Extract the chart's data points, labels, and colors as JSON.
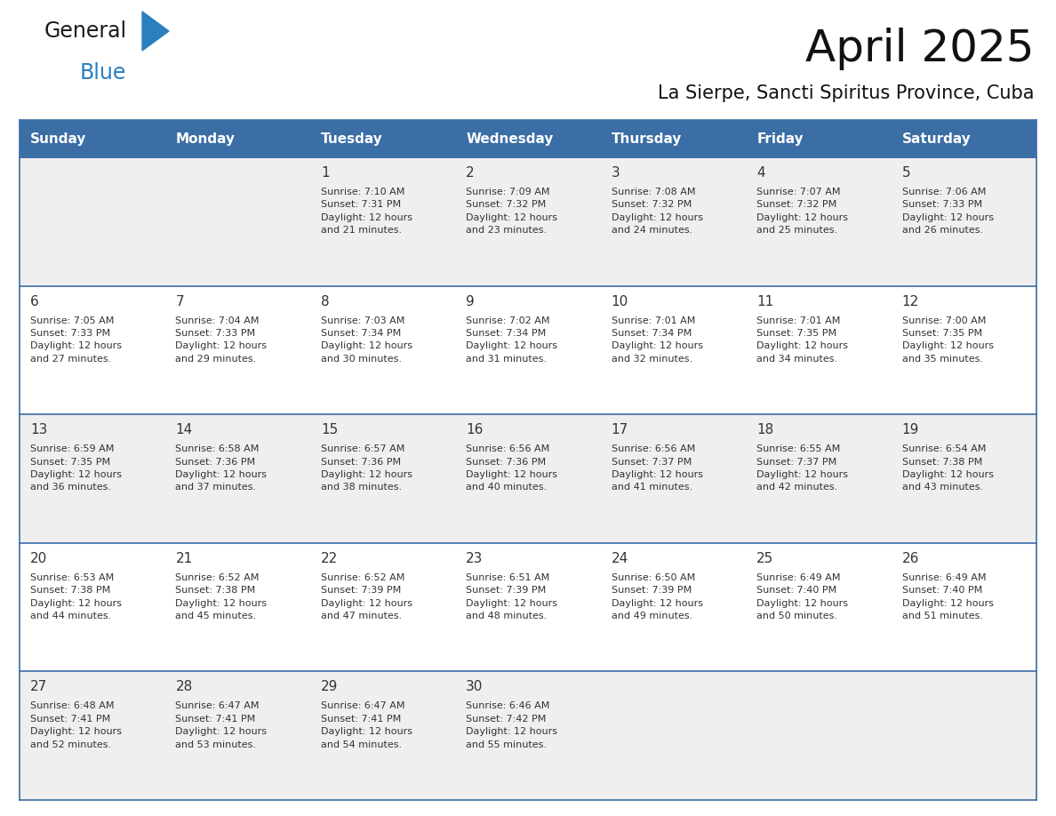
{
  "title": "April 2025",
  "subtitle": "La Sierpe, Sancti Spiritus Province, Cuba",
  "header_color": "#3a6ea5",
  "header_text_color": "#ffffff",
  "cell_bg_white": "#ffffff",
  "cell_bg_gray": "#efefef",
  "border_color": "#3a6ea5",
  "text_color": "#333333",
  "days_of_week": [
    "Sunday",
    "Monday",
    "Tuesday",
    "Wednesday",
    "Thursday",
    "Friday",
    "Saturday"
  ],
  "weeks": [
    [
      {
        "day": "",
        "info": ""
      },
      {
        "day": "",
        "info": ""
      },
      {
        "day": "1",
        "info": "Sunrise: 7:10 AM\nSunset: 7:31 PM\nDaylight: 12 hours\nand 21 minutes."
      },
      {
        "day": "2",
        "info": "Sunrise: 7:09 AM\nSunset: 7:32 PM\nDaylight: 12 hours\nand 23 minutes."
      },
      {
        "day": "3",
        "info": "Sunrise: 7:08 AM\nSunset: 7:32 PM\nDaylight: 12 hours\nand 24 minutes."
      },
      {
        "day": "4",
        "info": "Sunrise: 7:07 AM\nSunset: 7:32 PM\nDaylight: 12 hours\nand 25 minutes."
      },
      {
        "day": "5",
        "info": "Sunrise: 7:06 AM\nSunset: 7:33 PM\nDaylight: 12 hours\nand 26 minutes."
      }
    ],
    [
      {
        "day": "6",
        "info": "Sunrise: 7:05 AM\nSunset: 7:33 PM\nDaylight: 12 hours\nand 27 minutes."
      },
      {
        "day": "7",
        "info": "Sunrise: 7:04 AM\nSunset: 7:33 PM\nDaylight: 12 hours\nand 29 minutes."
      },
      {
        "day": "8",
        "info": "Sunrise: 7:03 AM\nSunset: 7:34 PM\nDaylight: 12 hours\nand 30 minutes."
      },
      {
        "day": "9",
        "info": "Sunrise: 7:02 AM\nSunset: 7:34 PM\nDaylight: 12 hours\nand 31 minutes."
      },
      {
        "day": "10",
        "info": "Sunrise: 7:01 AM\nSunset: 7:34 PM\nDaylight: 12 hours\nand 32 minutes."
      },
      {
        "day": "11",
        "info": "Sunrise: 7:01 AM\nSunset: 7:35 PM\nDaylight: 12 hours\nand 34 minutes."
      },
      {
        "day": "12",
        "info": "Sunrise: 7:00 AM\nSunset: 7:35 PM\nDaylight: 12 hours\nand 35 minutes."
      }
    ],
    [
      {
        "day": "13",
        "info": "Sunrise: 6:59 AM\nSunset: 7:35 PM\nDaylight: 12 hours\nand 36 minutes."
      },
      {
        "day": "14",
        "info": "Sunrise: 6:58 AM\nSunset: 7:36 PM\nDaylight: 12 hours\nand 37 minutes."
      },
      {
        "day": "15",
        "info": "Sunrise: 6:57 AM\nSunset: 7:36 PM\nDaylight: 12 hours\nand 38 minutes."
      },
      {
        "day": "16",
        "info": "Sunrise: 6:56 AM\nSunset: 7:36 PM\nDaylight: 12 hours\nand 40 minutes."
      },
      {
        "day": "17",
        "info": "Sunrise: 6:56 AM\nSunset: 7:37 PM\nDaylight: 12 hours\nand 41 minutes."
      },
      {
        "day": "18",
        "info": "Sunrise: 6:55 AM\nSunset: 7:37 PM\nDaylight: 12 hours\nand 42 minutes."
      },
      {
        "day": "19",
        "info": "Sunrise: 6:54 AM\nSunset: 7:38 PM\nDaylight: 12 hours\nand 43 minutes."
      }
    ],
    [
      {
        "day": "20",
        "info": "Sunrise: 6:53 AM\nSunset: 7:38 PM\nDaylight: 12 hours\nand 44 minutes."
      },
      {
        "day": "21",
        "info": "Sunrise: 6:52 AM\nSunset: 7:38 PM\nDaylight: 12 hours\nand 45 minutes."
      },
      {
        "day": "22",
        "info": "Sunrise: 6:52 AM\nSunset: 7:39 PM\nDaylight: 12 hours\nand 47 minutes."
      },
      {
        "day": "23",
        "info": "Sunrise: 6:51 AM\nSunset: 7:39 PM\nDaylight: 12 hours\nand 48 minutes."
      },
      {
        "day": "24",
        "info": "Sunrise: 6:50 AM\nSunset: 7:39 PM\nDaylight: 12 hours\nand 49 minutes."
      },
      {
        "day": "25",
        "info": "Sunrise: 6:49 AM\nSunset: 7:40 PM\nDaylight: 12 hours\nand 50 minutes."
      },
      {
        "day": "26",
        "info": "Sunrise: 6:49 AM\nSunset: 7:40 PM\nDaylight: 12 hours\nand 51 minutes."
      }
    ],
    [
      {
        "day": "27",
        "info": "Sunrise: 6:48 AM\nSunset: 7:41 PM\nDaylight: 12 hours\nand 52 minutes."
      },
      {
        "day": "28",
        "info": "Sunrise: 6:47 AM\nSunset: 7:41 PM\nDaylight: 12 hours\nand 53 minutes."
      },
      {
        "day": "29",
        "info": "Sunrise: 6:47 AM\nSunset: 7:41 PM\nDaylight: 12 hours\nand 54 minutes."
      },
      {
        "day": "30",
        "info": "Sunrise: 6:46 AM\nSunset: 7:42 PM\nDaylight: 12 hours\nand 55 minutes."
      },
      {
        "day": "",
        "info": ""
      },
      {
        "day": "",
        "info": ""
      },
      {
        "day": "",
        "info": ""
      }
    ]
  ],
  "logo_text_general": "General",
  "logo_text_blue": "Blue",
  "logo_general_color": "#1a1a1a",
  "logo_blue_color": "#2a7fbe",
  "logo_triangle_color": "#2a7fbe",
  "fig_width": 11.88,
  "fig_height": 9.18,
  "dpi": 100
}
